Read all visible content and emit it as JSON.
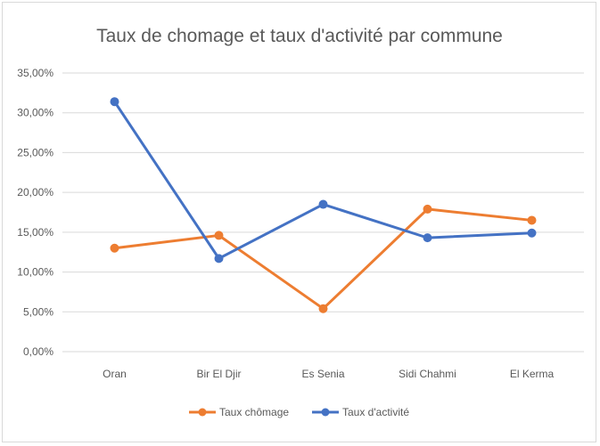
{
  "chart_data": {
    "type": "line",
    "title": "Taux de chomage et taux d'activité par commune",
    "categories": [
      "Oran",
      "Bir El Djir",
      "Es Senia",
      "Sidi Chahmi",
      "El Kerma"
    ],
    "ylim": [
      0,
      0.35
    ],
    "yticks": [
      "0,00%",
      "5,00%",
      "10,00%",
      "15,00%",
      "20,00%",
      "25,00%",
      "30,00%",
      "35,00%"
    ],
    "grid": true,
    "legend_position": "bottom",
    "series": [
      {
        "name": "Taux chômage",
        "color": "#ED7D31",
        "values": [
          0.13,
          0.146,
          0.054,
          0.179,
          0.165
        ]
      },
      {
        "name": "Taux d'activité",
        "color": "#4472C4",
        "values": [
          0.314,
          0.117,
          0.185,
          0.143,
          0.149
        ]
      }
    ]
  }
}
